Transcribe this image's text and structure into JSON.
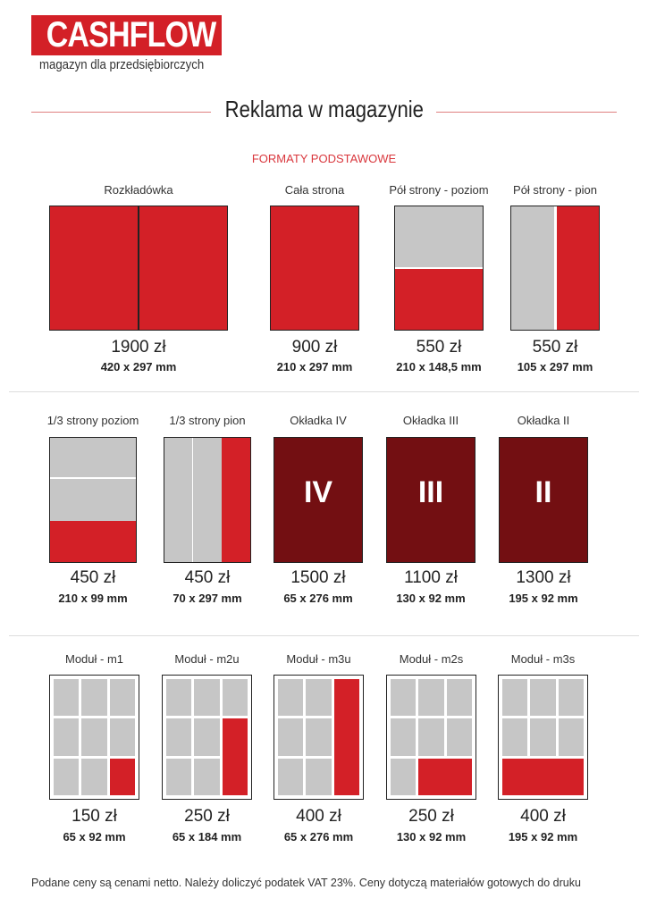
{
  "header": {
    "logo": "CASHFLOW",
    "tagline": "magazyn dla przedsiębiorczych",
    "title": "Reklama w magazynie",
    "subtitle": "FORMATY PODSTAWOWE"
  },
  "colors": {
    "red": "#d32027",
    "gray": "#c6c6c6",
    "dark": "#730f12"
  },
  "formats": [
    {
      "label": "Rozkładówka",
      "price": "1900 zł",
      "size": "420 x 297 mm",
      "type": "spread"
    },
    {
      "label": "Cała strona",
      "price": "900 zł",
      "size": "210 x 297 mm",
      "type": "full"
    },
    {
      "label": "Pół strony - poziom",
      "price": "550 zł",
      "size": "210 x 148,5 mm",
      "type": "half-h"
    },
    {
      "label": "Pół strony - pion",
      "price": "550 zł",
      "size": "105 x 297 mm",
      "type": "half-v"
    },
    {
      "label": "1/3 strony poziom",
      "price": "450 zł",
      "size": "210 x 99 mm",
      "type": "third-h"
    },
    {
      "label": "1/3 strony pion",
      "price": "450 zł",
      "size": "70 x 297 mm",
      "type": "third-v"
    },
    {
      "label": "Okładka IV",
      "price": "1500 zł",
      "size": "65 x 276 mm",
      "type": "cover",
      "roman": "IV"
    },
    {
      "label": "Okładka III",
      "price": "1100 zł",
      "size": "130 x 92 mm",
      "type": "cover",
      "roman": "III"
    },
    {
      "label": "Okładka II",
      "price": "1300 zł",
      "size": "195 x 92 mm",
      "type": "cover",
      "roman": "II"
    },
    {
      "label": "Moduł - m1",
      "price": "150 zł",
      "size": "65 x 92 mm",
      "type": "module",
      "span": "m1"
    },
    {
      "label": "Moduł - m2u",
      "price": "250 zł",
      "size": "65 x 184 mm",
      "type": "module",
      "span": "m2u"
    },
    {
      "label": "Moduł - m3u",
      "price": "400 zł",
      "size": "65 x 276 mm",
      "type": "module",
      "span": "m3u"
    },
    {
      "label": "Moduł - m2s",
      "price": "250 zł",
      "size": "130 x 92 mm",
      "type": "module",
      "span": "m2s"
    },
    {
      "label": "Moduł - m3s",
      "price": "400 zł",
      "size": "195 x 92 mm",
      "type": "module",
      "span": "m3s"
    }
  ],
  "footer": "Podane ceny są cenami netto. Należy doliczyć podatek VAT 23%. Ceny dotyczą materiałów gotowych do druku"
}
